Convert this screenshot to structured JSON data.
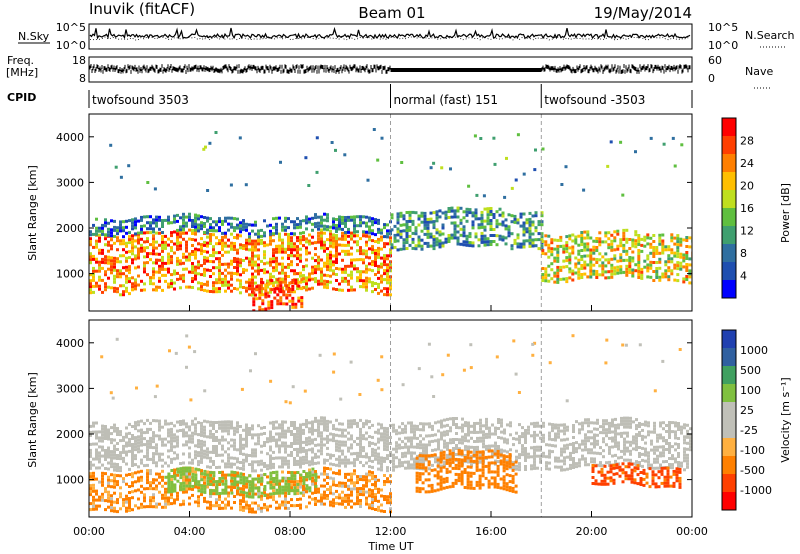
{
  "header": {
    "station": "Inuvik (fitACF)",
    "beam": "Beam 01",
    "date": "19/May/2014"
  },
  "top_panels": {
    "nsky_label": "N.Sky",
    "nsky_ticks": [
      "10^5",
      "10^0"
    ],
    "nsearch_label": "N.Search",
    "nsearch_ticks": [
      "10^5",
      "10^0"
    ],
    "freq_label_1": "Freq.",
    "freq_label_2": "[MHz]",
    "freq_ticks": [
      "18",
      "8"
    ],
    "nave_label": "Nave",
    "nave_ticks": [
      "60",
      "0"
    ],
    "cpid_label": "CPID",
    "cpid_segments": [
      {
        "label": "twofsound 3503",
        "start_hour": 0,
        "end_hour": 12
      },
      {
        "label": "normal (fast) 151",
        "start_hour": 12,
        "end_hour": 18
      },
      {
        "label": "twofsound -3503",
        "start_hour": 18,
        "end_hour": 24
      }
    ]
  },
  "colors": {
    "power_scale": [
      "#0000ff",
      "#1f4fb0",
      "#2f6fa0",
      "#3f9f6f",
      "#5fbf3f",
      "#bfdf1f",
      "#ffbf00",
      "#ff7f00",
      "#ff3f00",
      "#ff0000"
    ],
    "velocity_scale": [
      "#ff0000",
      "#ff4000",
      "#ff8000",
      "#ffb040",
      "#c0c0b8",
      "#c0c0b8",
      "#80c040",
      "#40a060",
      "#3060a0",
      "#2040b0"
    ],
    "ground_scatter": "#bebeb6"
  },
  "chart_data": [
    {
      "type": "heatmap",
      "name_printed": "Power",
      "xlabel": "Time UT",
      "ylabel": "Slant Range [km]",
      "xlim_hours": [
        0,
        24
      ],
      "ylim_km": [
        180,
        4500
      ],
      "x_ticks": [
        "00:00",
        "04:00",
        "08:00",
        "12:00",
        "16:00",
        "20:00",
        "00:00"
      ],
      "y_ticks": [
        1000,
        2000,
        3000,
        4000
      ],
      "colorbar_label": "Power [dB]",
      "colorbar_ticks": [
        4,
        8,
        12,
        16,
        20,
        24,
        28
      ],
      "colorbar_range": [
        0,
        30
      ],
      "mode_change_hours": [
        12,
        18
      ],
      "echo_bands": [
        {
          "t0": 0,
          "t1": 12,
          "r0": 600,
          "r1": 1900,
          "level_db": 22
        },
        {
          "t0": 0,
          "t1": 12,
          "r0": 1900,
          "r1": 2250,
          "level_db": 8
        },
        {
          "t0": 12,
          "t1": 18,
          "r0": 1600,
          "r1": 2400,
          "level_db": 10
        },
        {
          "t0": 18,
          "t1": 24,
          "r0": 900,
          "r1": 1900,
          "level_db": 18
        },
        {
          "t0": 6.5,
          "t1": 8.5,
          "r0": 300,
          "r1": 900,
          "level_db": 26
        }
      ]
    },
    {
      "type": "heatmap",
      "name_printed": "Velocity",
      "xlabel": "Time UT",
      "ylabel": "Slant Range [km]",
      "xlim_hours": [
        0,
        24
      ],
      "ylim_km": [
        180,
        4500
      ],
      "x_ticks": [
        "00:00",
        "04:00",
        "08:00",
        "12:00",
        "16:00",
        "20:00",
        "00:00"
      ],
      "y_ticks": [
        1000,
        2000,
        3000,
        4000
      ],
      "colorbar_label": "Velocity [m s⁻¹]",
      "colorbar_ticks": [
        1000,
        500,
        100,
        25,
        -25,
        -100,
        -500,
        -1000
      ],
      "mode_change_hours": [
        12,
        18
      ],
      "echo_bands": [
        {
          "t0": 0,
          "t1": 24,
          "r0": 1300,
          "r1": 2300,
          "class": "ground_scatter"
        },
        {
          "t0": 0,
          "t1": 12,
          "r0": 400,
          "r1": 1200,
          "velocity_ms": -150
        },
        {
          "t0": 3,
          "t1": 9,
          "r0": 700,
          "r1": 1200,
          "velocity_ms": 300
        },
        {
          "t0": 13,
          "t1": 17,
          "r0": 800,
          "r1": 1600,
          "velocity_ms": -300
        },
        {
          "t0": 20,
          "t1": 23.5,
          "r0": 900,
          "r1": 1300,
          "velocity_ms": -600
        }
      ]
    }
  ]
}
